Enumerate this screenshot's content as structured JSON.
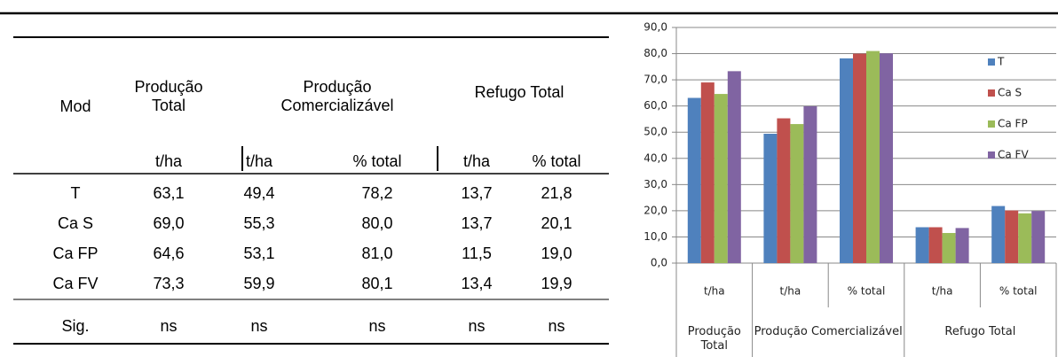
{
  "table": {
    "header": {
      "mod": "Mod",
      "groups": [
        "Produção Total",
        "Produção Comercializável",
        "Refugo Total"
      ],
      "units": [
        "t/ha",
        "t/ha",
        "% total",
        "t/ha",
        "% total"
      ]
    },
    "rows": [
      [
        "T",
        "63,1",
        "49,4",
        "78,2",
        "13,7",
        "21,8"
      ],
      [
        "Ca S",
        "69,0",
        "55,3",
        "80,0",
        "13,7",
        "20,1"
      ],
      [
        "Ca FP",
        "64,6",
        "53,1",
        "81,0",
        "11,5",
        "19,0"
      ],
      [
        "Ca FV",
        "73,3",
        "59,9",
        "80,1",
        "13,4",
        "19,9"
      ],
      [
        "Sig.",
        "ns",
        "ns",
        "ns",
        "ns",
        "ns"
      ]
    ]
  },
  "chart_data": {
    "type": "bar",
    "categories": [
      "t/ha",
      "t/ha",
      "% total",
      "t/ha",
      "% total"
    ],
    "category_groups": [
      {
        "label": "Produção Total",
        "span": 1
      },
      {
        "label": "Produção Comercializável",
        "span": 2
      },
      {
        "label": "Refugo Total",
        "span": 2
      }
    ],
    "series": [
      {
        "name": "T",
        "color": "#4f81bd",
        "values": [
          63.1,
          49.4,
          78.2,
          13.7,
          21.8
        ]
      },
      {
        "name": "Ca S",
        "color": "#c0504d",
        "values": [
          69.0,
          55.3,
          80.0,
          13.7,
          20.1
        ]
      },
      {
        "name": "Ca FP",
        "color": "#9bbb59",
        "values": [
          64.6,
          53.1,
          81.0,
          11.5,
          19.0
        ]
      },
      {
        "name": "Ca FV",
        "color": "#8064a2",
        "values": [
          73.3,
          59.9,
          80.1,
          13.4,
          19.9
        ]
      }
    ],
    "ylim": [
      0,
      90
    ],
    "yticks": [
      {
        "value": 0,
        "label": "0,0"
      },
      {
        "value": 10,
        "label": "10,0"
      },
      {
        "value": 20,
        "label": "20,0"
      },
      {
        "value": 30,
        "label": "30,0"
      },
      {
        "value": 40,
        "label": "40,0"
      },
      {
        "value": 50,
        "label": "50,0"
      },
      {
        "value": 60,
        "label": "60,0"
      },
      {
        "value": 70,
        "label": "70,0"
      },
      {
        "value": 80,
        "label": "80,0"
      },
      {
        "value": 90,
        "label": "90,0"
      }
    ],
    "grid": true,
    "legend": "right"
  }
}
